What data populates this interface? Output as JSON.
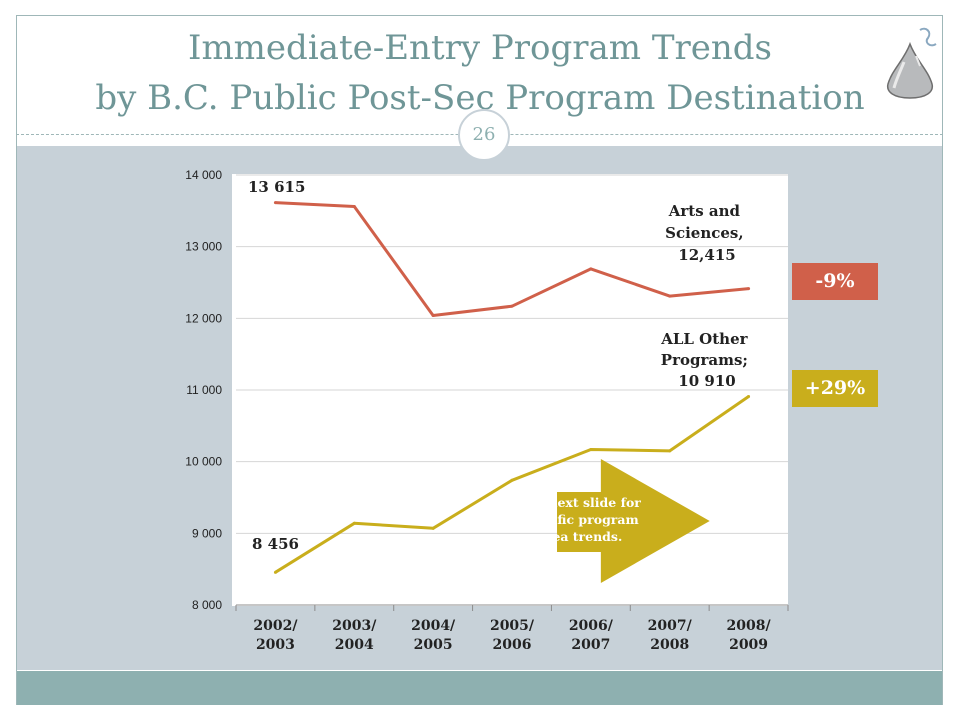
{
  "slide": {
    "title_line1": "Immediate-Entry Program Trends",
    "title_line2": "by B.C. Public Post-Sec Program Destination",
    "page_number": "26",
    "colors": {
      "title": "#6f9697",
      "panel": "#c7d1d8",
      "footer": "#8eb0b0"
    }
  },
  "chart_data": {
    "type": "line",
    "categories": [
      "2002/\n2003",
      "2003/\n2004",
      "2004/\n2005",
      "2005/\n2006",
      "2006/\n2007",
      "2007/\n2008",
      "2008/\n2009"
    ],
    "ylim": [
      8000,
      14000
    ],
    "yticks": [
      8000,
      9000,
      10000,
      11000,
      12000,
      13000,
      14000
    ],
    "ytick_labels": [
      "8 000",
      "9 000",
      "10 000",
      "11 000",
      "12 000",
      "13 000",
      "14 000"
    ],
    "grid": "horizontal",
    "series": [
      {
        "key": "arts",
        "color": "#d0604a",
        "values": [
          13615,
          13560,
          12040,
          12170,
          12690,
          12310,
          12415
        ]
      },
      {
        "key": "other",
        "color": "#c9ae1c",
        "values": [
          8456,
          9140,
          9070,
          9740,
          10170,
          10150,
          10910
        ]
      }
    ],
    "labels": {
      "arts_start": "13 615",
      "other_start": "8 456",
      "arts_end": [
        "Arts and",
        "Sciences,",
        "12,415"
      ],
      "other_end": [
        "ALL Other",
        "Programs;",
        "10 910"
      ]
    }
  },
  "badges": {
    "arts_change": "-9%",
    "other_change": "+29%"
  },
  "callout": {
    "text": "See next slide for specific program area trends.",
    "color": "#c9ae1c"
  }
}
